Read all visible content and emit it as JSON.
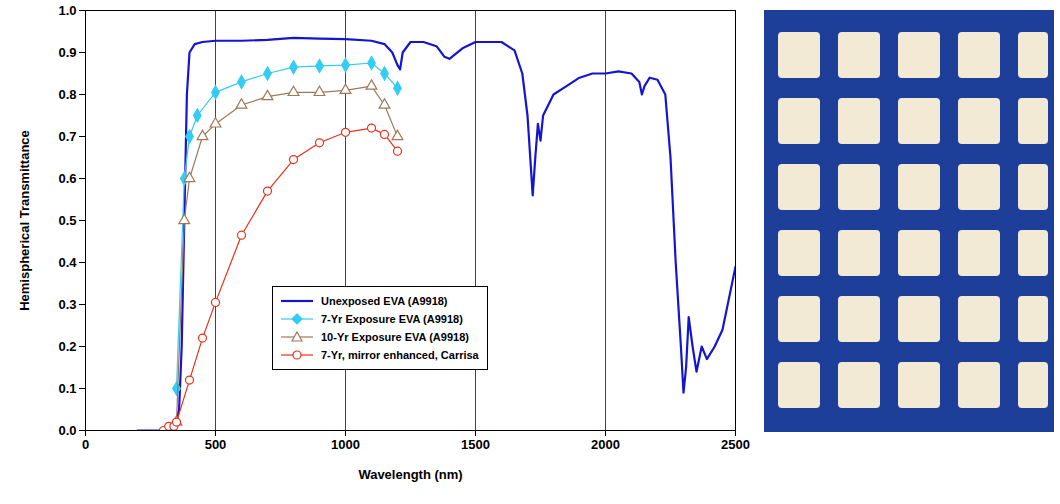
{
  "chart_data": {
    "type": "line",
    "x_label": "Wavelength (nm)",
    "y_label": "Hemispherical Transmittance",
    "xlim": [
      0,
      2500
    ],
    "xticks": [
      0,
      500,
      1000,
      1500,
      2000,
      2500
    ],
    "ylim": [
      0,
      1
    ],
    "yticks": [
      {
        "value": 0,
        "label": "0.0"
      },
      0.1,
      0.2,
      0.3,
      0.4,
      0.5,
      0.6,
      0.7,
      0.8,
      0.9,
      {
        "value": 1,
        "label": "1.0"
      }
    ],
    "grid": "x",
    "legend": "bottom",
    "series": [
      {
        "name": "Unexposed EVA (A9918)",
        "color": "#1515d0",
        "marker": "none",
        "x": [
          200,
          300,
          340,
          360,
          370,
          380,
          390,
          400,
          420,
          450,
          500,
          600,
          700,
          800,
          900,
          1000,
          1100,
          1150,
          1180,
          1200,
          1210,
          1220,
          1250,
          1300,
          1350,
          1380,
          1400,
          1420,
          1450,
          1500,
          1600,
          1650,
          1680,
          1700,
          1720,
          1730,
          1740,
          1750,
          1760,
          1800,
          1850,
          1900,
          1950,
          2000,
          2050,
          2100,
          2130,
          2140,
          2150,
          2170,
          2200,
          2230,
          2250,
          2270,
          2290,
          2300,
          2310,
          2320,
          2335,
          2350,
          2370,
          2390,
          2420,
          2450,
          2480,
          2500
        ],
        "values": [
          0.0,
          0.0,
          0.0,
          0.05,
          0.2,
          0.5,
          0.8,
          0.9,
          0.92,
          0.925,
          0.928,
          0.928,
          0.93,
          0.935,
          0.933,
          0.932,
          0.928,
          0.92,
          0.9,
          0.87,
          0.86,
          0.9,
          0.925,
          0.925,
          0.915,
          0.89,
          0.885,
          0.895,
          0.91,
          0.925,
          0.925,
          0.905,
          0.85,
          0.75,
          0.56,
          0.65,
          0.73,
          0.69,
          0.75,
          0.8,
          0.82,
          0.84,
          0.85,
          0.85,
          0.855,
          0.85,
          0.83,
          0.8,
          0.82,
          0.84,
          0.835,
          0.8,
          0.65,
          0.4,
          0.2,
          0.09,
          0.15,
          0.27,
          0.2,
          0.14,
          0.2,
          0.17,
          0.2,
          0.24,
          0.33,
          0.39
        ]
      },
      {
        "name": "7-Yr Exposure EVA (A9918)",
        "color": "#33ccf5",
        "marker": "diamond",
        "x": [
          350,
          380,
          400,
          430,
          500,
          600,
          700,
          800,
          900,
          1000,
          1100,
          1150,
          1200
        ],
        "values": [
          0.1,
          0.6,
          0.7,
          0.75,
          0.805,
          0.83,
          0.85,
          0.865,
          0.868,
          0.87,
          0.875,
          0.85,
          0.815
        ]
      },
      {
        "name": "10-Yr Exposure EVA (A9918)",
        "color": "#a07858",
        "marker": "triangle_open",
        "x": [
          350,
          380,
          400,
          450,
          500,
          600,
          700,
          800,
          900,
          1000,
          1100,
          1150,
          1200
        ],
        "values": [
          0.02,
          0.5,
          0.6,
          0.7,
          0.73,
          0.775,
          0.795,
          0.805,
          0.805,
          0.81,
          0.82,
          0.775,
          0.7
        ]
      },
      {
        "name": "7-Yr, mirror enhanced, Carrisa",
        "color": "#e8301c",
        "marker": "circle_open",
        "x": [
          300,
          320,
          340,
          350,
          400,
          450,
          500,
          600,
          700,
          800,
          900,
          1000,
          1100,
          1150,
          1200
        ],
        "values": [
          0.0,
          0.01,
          0.01,
          0.02,
          0.12,
          0.22,
          0.305,
          0.465,
          0.57,
          0.645,
          0.685,
          0.71,
          0.72,
          0.705,
          0.665
        ]
      }
    ]
  }
}
